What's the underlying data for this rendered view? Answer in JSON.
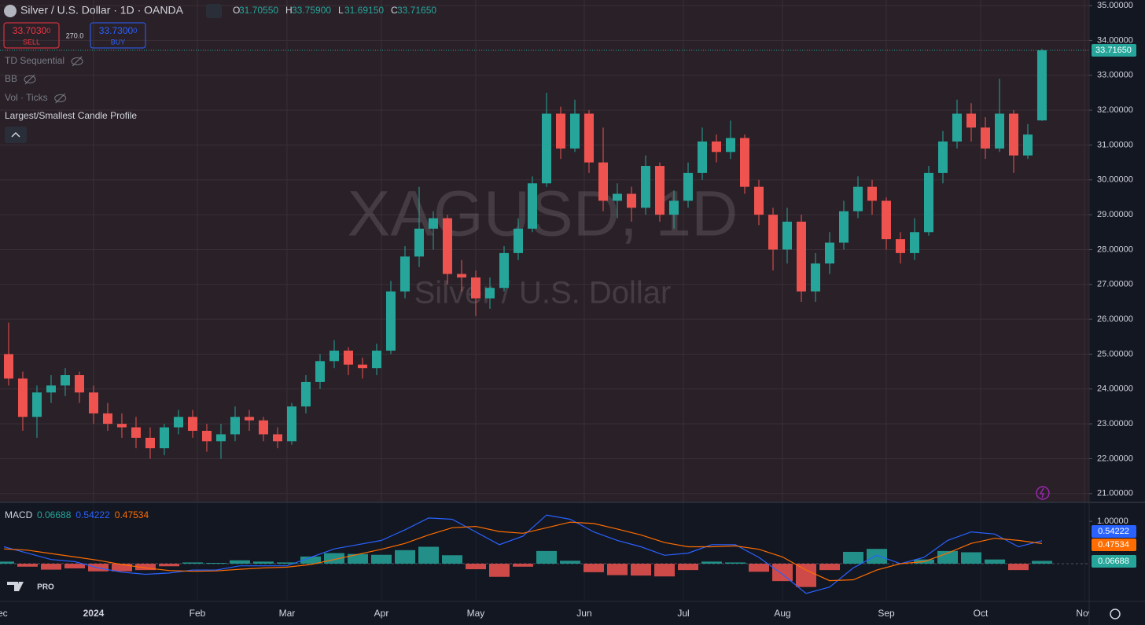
{
  "ui": {
    "symbol_title": "Silver / U.S. Dollar · 1D · OANDA",
    "ohlc": [
      {
        "label": "O",
        "value": "31.70550"
      },
      {
        "label": "H",
        "value": "33.75900"
      },
      {
        "label": "L",
        "value": "31.69150"
      },
      {
        "label": "C",
        "value": "33.71650"
      }
    ],
    "sell": {
      "price": "33.7030",
      "pip": "0",
      "label": "SELL"
    },
    "spread": "270.0",
    "buy": {
      "price": "33.7300",
      "pip": "0",
      "label": "BUY"
    },
    "indicators": [
      "TD Sequential",
      "BB",
      "Vol · Ticks",
      "Largest/Smallest Candle Profile"
    ],
    "watermark": {
      "symbol": "XAGUSD, 1D",
      "name": "Silver / U.S. Dollar"
    },
    "logo_badge": "PRO"
  },
  "chart_data": [
    {
      "type": "candlestick",
      "x": [
        1,
        4,
        7,
        10,
        13,
        16,
        19,
        22,
        25,
        28,
        31,
        34,
        37,
        40,
        43,
        46,
        49,
        52,
        55,
        58,
        61,
        64,
        67,
        70,
        73,
        76,
        79,
        82,
        85,
        88,
        91,
        94,
        97,
        100,
        103,
        106,
        109,
        112,
        115,
        118,
        121,
        124,
        127,
        130,
        133,
        136,
        139,
        142,
        145,
        148,
        151,
        154,
        157,
        160,
        163,
        166,
        169,
        172,
        175,
        178,
        181,
        184,
        187,
        190,
        193,
        196,
        199,
        202,
        205,
        208,
        211,
        214,
        217,
        220
      ],
      "open": [
        25.0,
        24.3,
        23.2,
        23.9,
        24.1,
        24.4,
        23.9,
        23.3,
        23.0,
        22.9,
        22.6,
        22.3,
        22.9,
        23.2,
        22.8,
        22.5,
        22.7,
        23.2,
        23.1,
        22.7,
        22.5,
        23.5,
        24.2,
        24.8,
        25.1,
        24.7,
        24.6,
        25.1,
        26.8,
        27.8,
        28.6,
        28.9,
        27.3,
        27.2,
        26.6,
        26.9,
        27.9,
        28.6,
        29.9,
        31.9,
        30.9,
        31.9,
        30.5,
        29.4,
        29.6,
        29.2,
        30.4,
        29.0,
        29.4,
        30.2,
        31.1,
        30.8,
        31.2,
        29.8,
        29.0,
        28.0,
        28.8,
        26.8,
        27.6,
        28.2,
        29.1,
        29.8,
        29.4,
        28.3,
        27.9,
        28.5,
        30.2,
        31.1,
        31.9,
        31.5,
        30.9,
        31.9,
        30.7,
        31.7055
      ],
      "high": [
        25.9,
        24.5,
        24.1,
        24.4,
        24.6,
        24.5,
        24.1,
        23.6,
        23.3,
        23.2,
        22.9,
        23.0,
        23.4,
        23.4,
        23.0,
        23.0,
        23.5,
        23.4,
        23.2,
        22.9,
        23.6,
        24.4,
        25.0,
        25.4,
        25.2,
        24.9,
        25.3,
        27.1,
        28.1,
        29.8,
        29.1,
        29.0,
        27.7,
        27.4,
        27.2,
        28.1,
        28.9,
        30.1,
        32.5,
        32.1,
        32.3,
        32.0,
        31.5,
        29.9,
        29.8,
        30.7,
        30.5,
        29.7,
        30.5,
        31.5,
        31.3,
        31.7,
        31.3,
        30.0,
        29.2,
        29.2,
        29.0,
        27.9,
        28.5,
        29.4,
        30.1,
        30.0,
        29.5,
        28.5,
        28.9,
        30.4,
        31.4,
        32.3,
        32.2,
        31.8,
        32.9,
        32.0,
        31.6,
        33.759
      ],
      "low": [
        24.1,
        22.8,
        22.6,
        23.6,
        23.8,
        23.6,
        23.0,
        22.8,
        22.6,
        22.3,
        22.0,
        22.1,
        22.7,
        22.6,
        22.2,
        22.0,
        22.5,
        22.8,
        22.5,
        22.3,
        22.4,
        23.3,
        24.0,
        24.6,
        24.4,
        24.3,
        24.4,
        25.0,
        26.6,
        27.5,
        28.0,
        27.0,
        26.8,
        26.1,
        26.3,
        26.8,
        27.7,
        28.5,
        29.8,
        30.6,
        30.8,
        30.2,
        29.1,
        28.9,
        28.8,
        29.0,
        28.8,
        28.6,
        29.2,
        30.0,
        30.5,
        30.6,
        29.6,
        28.7,
        27.4,
        27.6,
        26.5,
        26.5,
        27.3,
        28.0,
        28.9,
        29.0,
        28.0,
        27.6,
        27.7,
        28.4,
        29.9,
        30.9,
        31.1,
        30.6,
        30.8,
        30.2,
        30.6,
        31.6915
      ],
      "close": [
        24.3,
        23.2,
        23.9,
        24.1,
        24.4,
        23.9,
        23.3,
        23.0,
        22.9,
        22.6,
        22.3,
        22.9,
        23.2,
        22.8,
        22.5,
        22.7,
        23.2,
        23.1,
        22.7,
        22.5,
        23.5,
        24.2,
        24.8,
        25.1,
        24.7,
        24.6,
        25.1,
        26.8,
        27.8,
        28.6,
        28.9,
        27.3,
        27.2,
        26.6,
        26.9,
        27.9,
        28.6,
        29.9,
        31.9,
        30.9,
        31.9,
        30.5,
        29.4,
        29.6,
        29.2,
        30.4,
        29.0,
        29.4,
        30.2,
        31.1,
        30.8,
        31.2,
        29.8,
        29.0,
        28.0,
        28.8,
        26.8,
        27.6,
        28.2,
        29.1,
        29.8,
        29.4,
        28.3,
        27.9,
        28.5,
        30.2,
        31.1,
        31.9,
        31.5,
        30.9,
        31.9,
        30.7,
        31.3,
        33.7165
      ],
      "up_color": "#26a69a",
      "down_color": "#ef5350",
      "xlim": [
        -0.83,
        230
      ],
      "ylim": [
        20.77,
        35.16
      ],
      "yticks": [
        {
          "value": 21,
          "label": "21.00000"
        },
        {
          "value": 22,
          "label": "22.00000"
        },
        {
          "value": 23,
          "label": "23.00000"
        },
        {
          "value": 24,
          "label": "24.00000"
        },
        {
          "value": 25,
          "label": "25.00000"
        },
        {
          "value": 26,
          "label": "26.00000"
        },
        {
          "value": 27,
          "label": "27.00000"
        },
        {
          "value": 28,
          "label": "28.00000"
        },
        {
          "value": 29,
          "label": "29.00000"
        },
        {
          "value": 30,
          "label": "30.00000"
        },
        {
          "value": 31,
          "label": "31.00000"
        },
        {
          "value": 32,
          "label": "32.00000"
        },
        {
          "value": 33,
          "label": "33.00000"
        },
        {
          "value": 34,
          "label": "34.00000"
        },
        {
          "value": 35,
          "label": "35.00000"
        }
      ],
      "xticks": [
        {
          "value": -1,
          "label": "Dec"
        },
        {
          "value": 19,
          "label": "2024"
        },
        {
          "value": 41,
          "label": "Feb"
        },
        {
          "value": 60,
          "label": "Mar"
        },
        {
          "value": 80,
          "label": "Apr"
        },
        {
          "value": 100,
          "label": "May"
        },
        {
          "value": 123,
          "label": "Jun"
        },
        {
          "value": 144,
          "label": "Jul"
        },
        {
          "value": 165,
          "label": "Aug"
        },
        {
          "value": 187,
          "label": "Sep"
        },
        {
          "value": 207,
          "label": "Oct"
        },
        {
          "value": 229,
          "label": "Nov"
        }
      ],
      "grid": true,
      "last_label": "33.71650"
    },
    {
      "type": "macd",
      "title": "MACD",
      "x": [
        0,
        5,
        10,
        15,
        20,
        25,
        30,
        35,
        40,
        45,
        50,
        55,
        60,
        65,
        70,
        75,
        80,
        85,
        90,
        95,
        100,
        105,
        110,
        115,
        120,
        125,
        130,
        135,
        140,
        145,
        150,
        155,
        160,
        165,
        170,
        175,
        180,
        185,
        190,
        195,
        200,
        205,
        210,
        215,
        220
      ],
      "histogram": {
        "values": [
          0.05,
          -0.07,
          -0.14,
          -0.11,
          -0.18,
          -0.18,
          -0.15,
          -0.06,
          0.03,
          0.02,
          0.08,
          0.05,
          0.03,
          0.17,
          0.25,
          0.23,
          0.21,
          0.32,
          0.4,
          0.2,
          -0.13,
          -0.31,
          -0.07,
          0.3,
          0.07,
          -0.2,
          -0.27,
          -0.28,
          -0.3,
          -0.15,
          0.05,
          0.03,
          -0.19,
          -0.41,
          -0.55,
          -0.15,
          0.28,
          0.35,
          0.0,
          0.1,
          0.3,
          0.27,
          0.1,
          -0.15,
          0.06688
        ],
        "last_label": "0.06688",
        "up_color": "#26a69a",
        "down_color": "#ef5350"
      },
      "series": [
        {
          "color": "#2962ff",
          "last_label": "0.54222",
          "values": [
            0.4,
            0.25,
            0.1,
            0.05,
            -0.1,
            -0.2,
            -0.25,
            -0.22,
            -0.15,
            -0.15,
            -0.05,
            -0.05,
            -0.05,
            0.15,
            0.35,
            0.45,
            0.55,
            0.8,
            1.08,
            1.05,
            0.75,
            0.45,
            0.65,
            1.15,
            1.05,
            0.75,
            0.55,
            0.4,
            0.2,
            0.25,
            0.45,
            0.45,
            0.15,
            -0.25,
            -0.7,
            -0.55,
            -0.1,
            0.2,
            0.0,
            0.15,
            0.55,
            0.75,
            0.7,
            0.4,
            0.54222
          ]
        },
        {
          "color": "#ff6d00",
          "last_label": "0.47534",
          "values": [
            0.35,
            0.32,
            0.24,
            0.16,
            0.08,
            -0.02,
            -0.1,
            -0.16,
            -0.18,
            -0.17,
            -0.13,
            -0.1,
            -0.08,
            -0.02,
            0.1,
            0.22,
            0.34,
            0.48,
            0.68,
            0.85,
            0.88,
            0.76,
            0.72,
            0.85,
            0.98,
            0.95,
            0.82,
            0.68,
            0.5,
            0.4,
            0.4,
            0.42,
            0.34,
            0.16,
            -0.15,
            -0.4,
            -0.38,
            -0.15,
            0.0,
            0.05,
            0.25,
            0.48,
            0.6,
            0.55,
            0.47534
          ]
        }
      ],
      "xlim": [
        -0.83,
        230
      ],
      "ylim": [
        -0.89,
        1.43
      ],
      "yticks": [
        {
          "value": 1,
          "label": "1.00000"
        }
      ]
    }
  ]
}
